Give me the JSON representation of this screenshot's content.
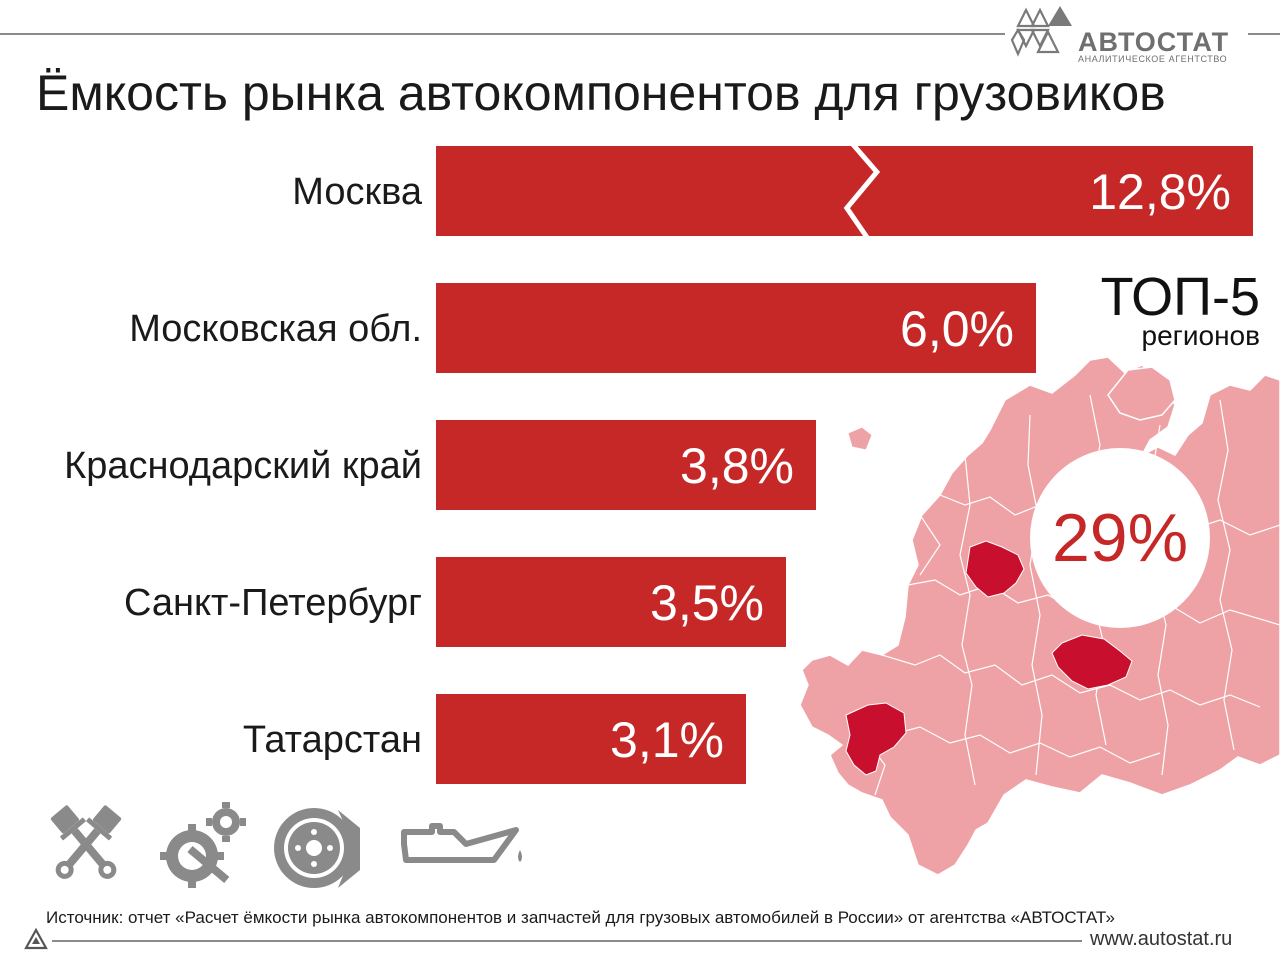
{
  "brand": {
    "name": "АВТОСТАТ",
    "tagline": "АНАЛИТИЧЕСКОЕ АГЕНТСТВО",
    "website": "www.autostat.ru"
  },
  "colors": {
    "bar": "#c62828",
    "map_fill": "#eea2a6",
    "map_highlight": "#c8102e",
    "text": "#1a1a1a",
    "gray": "#8a8a8a"
  },
  "chart_data": {
    "type": "bar",
    "orientation": "horizontal",
    "title": "Ёмкость рынка автокомпонентов для грузовиков",
    "categories": [
      "Москва",
      "Московская обл.",
      "Краснодарский край",
      "Санкт-Петербург",
      "Татарстан"
    ],
    "values": [
      12.8,
      6.0,
      3.8,
      3.5,
      3.1
    ],
    "value_labels": [
      "12,8%",
      "6,0%",
      "3,8%",
      "3,5%",
      "3,1%"
    ],
    "unit": "%",
    "axis_break_on_first_bar": true,
    "xlabel": "",
    "ylabel": ""
  },
  "summary": {
    "title": "ТОП-5",
    "subtitle": "регионов",
    "total": "29%"
  },
  "icons": [
    "pistons-icon",
    "gears-wrench-icon",
    "brake-disc-icon",
    "oil-can-icon"
  ],
  "source": "Источник: отчет «Расчет ёмкости рынка автокомпонентов и запчастей для грузовых автомобилей в России» от агентства «АВТОСТАТ»"
}
